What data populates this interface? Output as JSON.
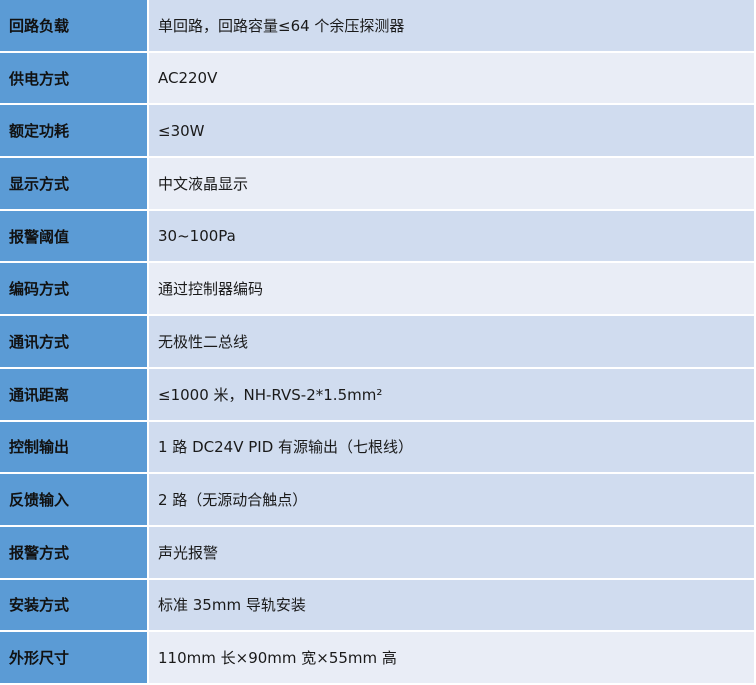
{
  "colors": {
    "key_bg": "#5b9bd5",
    "row_dark": "#d0dcef",
    "row_light": "#e9edf6"
  },
  "rows": [
    {
      "label": "回路负载",
      "value": "单回路，回路容量≤64 个余压探测器",
      "shade": "dark"
    },
    {
      "label": "供电方式",
      "value": "AC220V",
      "shade": "light"
    },
    {
      "label": "额定功耗",
      "value": "≤30W",
      "shade": "dark"
    },
    {
      "label": "显示方式",
      "value": "中文液晶显示",
      "shade": "light"
    },
    {
      "label": "报警阈值",
      "value": "30~100Pa",
      "shade": "dark"
    },
    {
      "label": "编码方式",
      "value": "通过控制器编码",
      "shade": "light"
    },
    {
      "label": "通讯方式",
      "value": "无极性二总线",
      "shade": "dark"
    },
    {
      "label": "通讯距离",
      "value": "≤1000 米，NH-RVS-2*1.5mm²",
      "shade": "dark"
    },
    {
      "label": "控制输出",
      "value": "1 路 DC24V PID 有源输出（七根线）",
      "shade": "dark"
    },
    {
      "label": "反馈输入",
      "value": "2 路（无源动合触点）",
      "shade": "dark"
    },
    {
      "label": "报警方式",
      "value": "声光报警",
      "shade": "dark"
    },
    {
      "label": "安装方式",
      "value": "标准 35mm 导轨安装",
      "shade": "dark"
    },
    {
      "label": "外形尺寸",
      "value": "110mm 长×90mm 宽×55mm 高",
      "shade": "light"
    }
  ]
}
